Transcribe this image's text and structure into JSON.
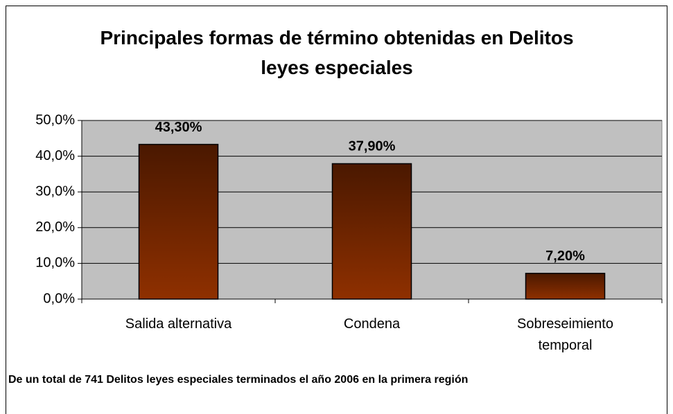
{
  "chart_data": {
    "type": "bar",
    "title": "Principales formas de término obtenidas en Delitos leyes especiales",
    "categories": [
      "Salida alternativa",
      "Condena",
      "Sobreseimiento temporal"
    ],
    "values": [
      43.3,
      37.9,
      7.2
    ],
    "value_labels": [
      "43,30%",
      "37,90%",
      "7,20%"
    ],
    "ylim": [
      0,
      50
    ],
    "yticks": [
      {
        "value": 0,
        "label": "0,0%"
      },
      {
        "value": 10,
        "label": "10,0%"
      },
      {
        "value": 20,
        "label": "20,0%"
      },
      {
        "value": 30,
        "label": "30,0%"
      },
      {
        "value": 40,
        "label": "40,0%"
      },
      {
        "value": 50,
        "label": "50,0%"
      }
    ],
    "grid": true,
    "color": "#8f3000",
    "note": "De un total de 741 Delitos leyes especiales terminados el año 2006 en la primera región"
  }
}
